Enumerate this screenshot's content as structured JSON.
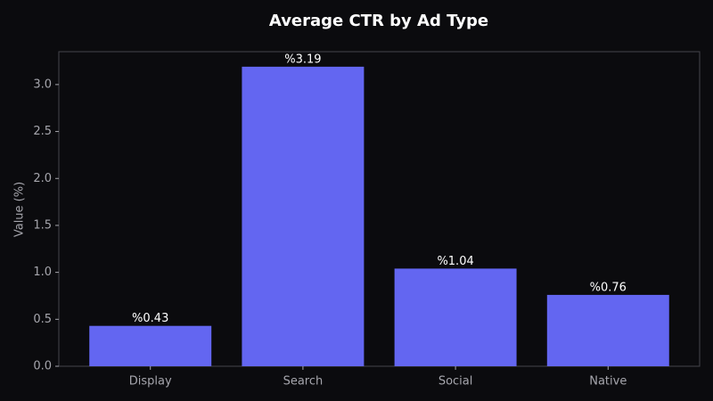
{
  "chart_data": {
    "type": "bar",
    "title": "Average CTR by Ad Type",
    "ylabel": "Value (%)",
    "categories": [
      "Display",
      "Search",
      "Social",
      "Native"
    ],
    "values": [
      0.43,
      3.19,
      1.04,
      0.76
    ],
    "value_labels": [
      "%0.43",
      "%3.19",
      "%1.04",
      "%0.76"
    ],
    "color": "#6366f1",
    "ylim": [
      0,
      3.35
    ],
    "yticks": [
      {
        "value": 0,
        "label": "0.0"
      },
      {
        "value": 0.5,
        "label": "0.5"
      },
      {
        "value": 1,
        "label": "1.0"
      },
      {
        "value": 1.5,
        "label": "1.5"
      },
      {
        "value": 2,
        "label": "2.0"
      },
      {
        "value": 2.5,
        "label": "2.5"
      },
      {
        "value": 3,
        "label": "3.0"
      }
    ],
    "grid": false
  }
}
